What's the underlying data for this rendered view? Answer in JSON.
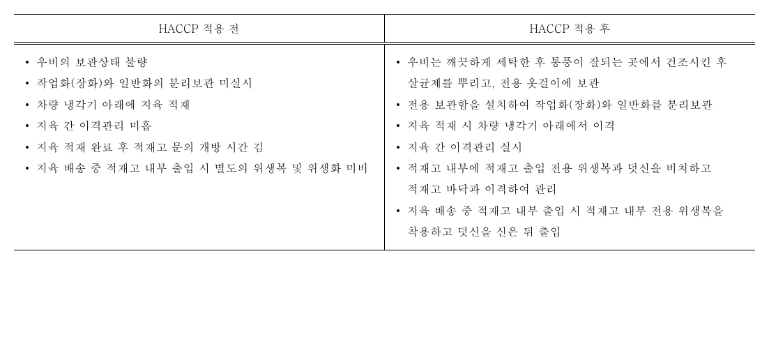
{
  "table": {
    "headers": {
      "left": "HACCP 적용 전",
      "right": "HACCP 적용 후"
    },
    "columns": {
      "left": {
        "items": [
          "우비의 보관상태 불량",
          "작업화(장화)와 일반화의 분리보관 미실시",
          "차량 냉각기 아래에 지육 적재",
          "지육 간 이격관리 미흡",
          "지육 적재 완료 후 적재고 문의 개방 시간 김",
          "지육 배송 중 적재고 내부 출입 시 별도의 위생복 및 위생화 미비"
        ]
      },
      "right": {
        "items": [
          "우비는 깨끗하게 세탁한 후 통풍이 잘되는 곳에서 건조시킨 후 살균제를 뿌리고, 전용 옷걸이에 보관",
          "전용 보관함을 설치하여 작업화(장화)와 일반화를 분리보관",
          "지육 적재 시 차량 냉각기 아래에서 이격",
          "지육 간 이격관리 실시",
          "적재고 내부에 적재고 출입 전용 위생복과 덧신을 비치하고 적재고 바닥과 이격하여 관리",
          "지육 배송 중 적재고 내부 출입 시 적재고 내부 전용 위생복을 착용하고 덧신을 신은 뒤 출입"
        ]
      }
    }
  },
  "styling": {
    "font_family": "Batang, Malgun Gothic, serif",
    "font_size": 16,
    "text_color": "#000000",
    "background_color": "#ffffff",
    "border_color": "#000000",
    "line_height": 1.9,
    "container_width": 1063,
    "bullet_char": "•"
  }
}
